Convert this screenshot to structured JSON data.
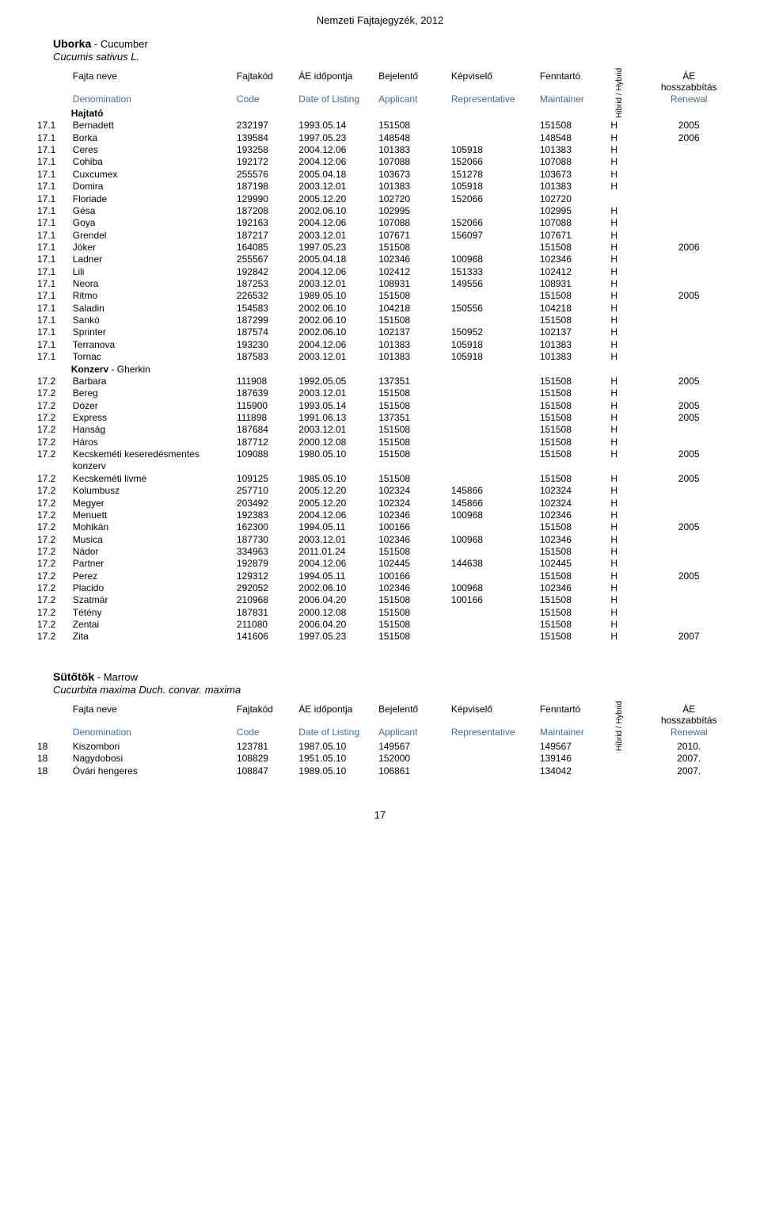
{
  "doc_title": "Nemzeti Fajtajegyzék, 2012",
  "page_number": "17",
  "columns": {
    "hu": [
      "Fajta neve",
      "Fajtakód",
      "ÁE időpontja",
      "Bejelentő",
      "Képviselő",
      "Fenntartó",
      "Hibrid / Hybrid",
      "ÁE hosszabbítás"
    ],
    "en": [
      "Denomination",
      "Code",
      "Date of Listing",
      "Applicant",
      "Representative",
      "Maintainer",
      "",
      "Renewal"
    ]
  },
  "species1": {
    "name_hu": "Uborka",
    "name_en": "Cucumber",
    "latin": "Cucumis sativus L.",
    "groups": [
      {
        "label_hu": "Hajtató",
        "label_en": "",
        "rows": [
          {
            "idx": "17.1",
            "name": "Bernadett",
            "code": "232197",
            "date": "1993.05.14",
            "app": "151508",
            "rep": "",
            "maint": "151508",
            "hyb": "H",
            "renew": "2005"
          },
          {
            "idx": "17.1",
            "name": "Borka",
            "code": "139584",
            "date": "1997.05.23",
            "app": "148548",
            "rep": "",
            "maint": "148548",
            "hyb": "H",
            "renew": "2006"
          },
          {
            "idx": "17.1",
            "name": "Ceres",
            "code": "193258",
            "date": "2004.12.06",
            "app": "101383",
            "rep": "105918",
            "maint": "101383",
            "hyb": "H",
            "renew": ""
          },
          {
            "idx": "17.1",
            "name": "Cohiba",
            "code": "192172",
            "date": "2004.12.06",
            "app": "107088",
            "rep": "152066",
            "maint": "107088",
            "hyb": "H",
            "renew": ""
          },
          {
            "idx": "17.1",
            "name": "Cuxcumex",
            "code": "255576",
            "date": "2005.04.18",
            "app": "103673",
            "rep": "151278",
            "maint": "103673",
            "hyb": "H",
            "renew": ""
          },
          {
            "idx": "17.1",
            "name": "Domira",
            "code": "187198",
            "date": "2003.12.01",
            "app": "101383",
            "rep": "105918",
            "maint": "101383",
            "hyb": "H",
            "renew": ""
          },
          {
            "idx": "17.1",
            "name": "Floriade",
            "code": "129990",
            "date": "2005.12.20",
            "app": "102720",
            "rep": "152066",
            "maint": "102720",
            "hyb": "",
            "renew": ""
          },
          {
            "idx": "17.1",
            "name": "Gésa",
            "code": "187208",
            "date": "2002.06.10",
            "app": "102995",
            "rep": "",
            "maint": "102995",
            "hyb": "H",
            "renew": ""
          },
          {
            "idx": "17.1",
            "name": "Goya",
            "code": "192163",
            "date": "2004.12.06",
            "app": "107088",
            "rep": "152066",
            "maint": "107088",
            "hyb": "H",
            "renew": ""
          },
          {
            "idx": "17.1",
            "name": "Grendel",
            "code": "187217",
            "date": "2003.12.01",
            "app": "107671",
            "rep": "156097",
            "maint": "107671",
            "hyb": "H",
            "renew": ""
          },
          {
            "idx": "17.1",
            "name": "Jóker",
            "code": "164085",
            "date": "1997.05.23",
            "app": "151508",
            "rep": "",
            "maint": "151508",
            "hyb": "H",
            "renew": "2006"
          },
          {
            "idx": "17.1",
            "name": "Ladner",
            "code": "255567",
            "date": "2005.04.18",
            "app": "102346",
            "rep": "100968",
            "maint": "102346",
            "hyb": "H",
            "renew": ""
          },
          {
            "idx": "17.1",
            "name": "Lili",
            "code": "192842",
            "date": "2004.12.06",
            "app": "102412",
            "rep": "151333",
            "maint": "102412",
            "hyb": "H",
            "renew": ""
          },
          {
            "idx": "17.1",
            "name": "Neora",
            "code": "187253",
            "date": "2003.12.01",
            "app": "108931",
            "rep": "149556",
            "maint": "108931",
            "hyb": "H",
            "renew": ""
          },
          {
            "idx": "17.1",
            "name": "Ritmo",
            "code": "226532",
            "date": "1989.05.10",
            "app": "151508",
            "rep": "",
            "maint": "151508",
            "hyb": "H",
            "renew": "2005"
          },
          {
            "idx": "17.1",
            "name": "Saladin",
            "code": "154583",
            "date": "2002.06.10",
            "app": "104218",
            "rep": "150556",
            "maint": "104218",
            "hyb": "H",
            "renew": ""
          },
          {
            "idx": "17.1",
            "name": "Sankó",
            "code": "187299",
            "date": "2002.06.10",
            "app": "151508",
            "rep": "",
            "maint": "151508",
            "hyb": "H",
            "renew": ""
          },
          {
            "idx": "17.1",
            "name": "Sprinter",
            "code": "187574",
            "date": "2002.06.10",
            "app": "102137",
            "rep": "150952",
            "maint": "102137",
            "hyb": "H",
            "renew": ""
          },
          {
            "idx": "17.1",
            "name": "Terranova",
            "code": "193230",
            "date": "2004.12.06",
            "app": "101383",
            "rep": "105918",
            "maint": "101383",
            "hyb": "H",
            "renew": ""
          },
          {
            "idx": "17.1",
            "name": "Tornac",
            "code": "187583",
            "date": "2003.12.01",
            "app": "101383",
            "rep": "105918",
            "maint": "101383",
            "hyb": "H",
            "renew": ""
          }
        ]
      },
      {
        "label_hu": "Konzerv",
        "label_en": "Gherkin",
        "rows": [
          {
            "idx": "17.2",
            "name": "Barbara",
            "code": "111908",
            "date": "1992.05.05",
            "app": "137351",
            "rep": "",
            "maint": "151508",
            "hyb": "H",
            "renew": "2005"
          },
          {
            "idx": "17.2",
            "name": "Bereg",
            "code": "187639",
            "date": "2003.12.01",
            "app": "151508",
            "rep": "",
            "maint": "151508",
            "hyb": "H",
            "renew": ""
          },
          {
            "idx": "17.2",
            "name": "Dózer",
            "code": "115900",
            "date": "1993.05.14",
            "app": "151508",
            "rep": "",
            "maint": "151508",
            "hyb": "H",
            "renew": "2005"
          },
          {
            "idx": "17.2",
            "name": "Express",
            "code": "111898",
            "date": "1991.06.13",
            "app": "137351",
            "rep": "",
            "maint": "151508",
            "hyb": "H",
            "renew": "2005"
          },
          {
            "idx": "17.2",
            "name": "Hanság",
            "code": "187684",
            "date": "2003.12.01",
            "app": "151508",
            "rep": "",
            "maint": "151508",
            "hyb": "H",
            "renew": ""
          },
          {
            "idx": "17.2",
            "name": "Háros",
            "code": "187712",
            "date": "2000.12.08",
            "app": "151508",
            "rep": "",
            "maint": "151508",
            "hyb": "H",
            "renew": ""
          },
          {
            "idx": "17.2",
            "name": "Kecskeméti keseredésmentes konzerv",
            "code": "109088",
            "date": "1980.05.10",
            "app": "151508",
            "rep": "",
            "maint": "151508",
            "hyb": "H",
            "renew": "2005"
          },
          {
            "idx": "17.2",
            "name": "Kecskeméti livmé",
            "code": "109125",
            "date": "1985.05.10",
            "app": "151508",
            "rep": "",
            "maint": "151508",
            "hyb": "H",
            "renew": "2005"
          },
          {
            "idx": "17.2",
            "name": "Kolumbusz",
            "code": "257710",
            "date": "2005.12.20",
            "app": "102324",
            "rep": "145866",
            "maint": "102324",
            "hyb": "H",
            "renew": ""
          },
          {
            "idx": "17.2",
            "name": "Megyer",
            "code": "203492",
            "date": "2005.12.20",
            "app": "102324",
            "rep": "145866",
            "maint": "102324",
            "hyb": "H",
            "renew": ""
          },
          {
            "idx": "17.2",
            "name": "Menuett",
            "code": "192383",
            "date": "2004.12.06",
            "app": "102346",
            "rep": "100968",
            "maint": "102346",
            "hyb": "H",
            "renew": ""
          },
          {
            "idx": "17.2",
            "name": "Mohikán",
            "code": "162300",
            "date": "1994.05.11",
            "app": "100166",
            "rep": "",
            "maint": "151508",
            "hyb": "H",
            "renew": "2005"
          },
          {
            "idx": "17.2",
            "name": "Musica",
            "code": "187730",
            "date": "2003.12.01",
            "app": "102346",
            "rep": "100968",
            "maint": "102346",
            "hyb": "H",
            "renew": ""
          },
          {
            "idx": "17.2",
            "name": "Nádor",
            "code": "334963",
            "date": "2011.01.24",
            "app": "151508",
            "rep": "",
            "maint": "151508",
            "hyb": "H",
            "renew": ""
          },
          {
            "idx": "17.2",
            "name": "Partner",
            "code": "192879",
            "date": "2004.12.06",
            "app": "102445",
            "rep": "144638",
            "maint": "102445",
            "hyb": "H",
            "renew": ""
          },
          {
            "idx": "17.2",
            "name": "Perez",
            "code": "129312",
            "date": "1994.05.11",
            "app": "100166",
            "rep": "",
            "maint": "151508",
            "hyb": "H",
            "renew": "2005"
          },
          {
            "idx": "17.2",
            "name": "Placido",
            "code": "292052",
            "date": "2002.06.10",
            "app": "102346",
            "rep": "100968",
            "maint": "102346",
            "hyb": "H",
            "renew": ""
          },
          {
            "idx": "17.2",
            "name": "Szatmár",
            "code": "210968",
            "date": "2006.04.20",
            "app": "151508",
            "rep": "100166",
            "maint": "151508",
            "hyb": "H",
            "renew": ""
          },
          {
            "idx": "17.2",
            "name": "Tétény",
            "code": "187831",
            "date": "2000.12.08",
            "app": "151508",
            "rep": "",
            "maint": "151508",
            "hyb": "H",
            "renew": ""
          },
          {
            "idx": "17.2",
            "name": "Zentai",
            "code": "211080",
            "date": "2006.04.20",
            "app": "151508",
            "rep": "",
            "maint": "151508",
            "hyb": "H",
            "renew": ""
          },
          {
            "idx": "17.2",
            "name": "Zita",
            "code": "141606",
            "date": "1997.05.23",
            "app": "151508",
            "rep": "",
            "maint": "151508",
            "hyb": "H",
            "renew": "2007"
          }
        ]
      }
    ]
  },
  "species2": {
    "name_hu": "Sütőtök",
    "name_en": "Marrow",
    "latin": "Cucurbita maxima Duch. convar. maxima",
    "rows": [
      {
        "idx": "18",
        "name": "Kiszombori",
        "code": "123781",
        "date": "1987.05.10",
        "app": "149567",
        "rep": "",
        "maint": "149567",
        "hyb": "",
        "renew": "2010."
      },
      {
        "idx": "18",
        "name": "Nagydobosi",
        "code": "108829",
        "date": "1951.05.10",
        "app": "152000",
        "rep": "",
        "maint": "139146",
        "hyb": "",
        "renew": "2007."
      },
      {
        "idx": "18",
        "name": "Óvári hengeres",
        "code": "108847",
        "date": "1989.05.10",
        "app": "106861",
        "rep": "",
        "maint": "134042",
        "hyb": "",
        "renew": "2007."
      }
    ]
  }
}
